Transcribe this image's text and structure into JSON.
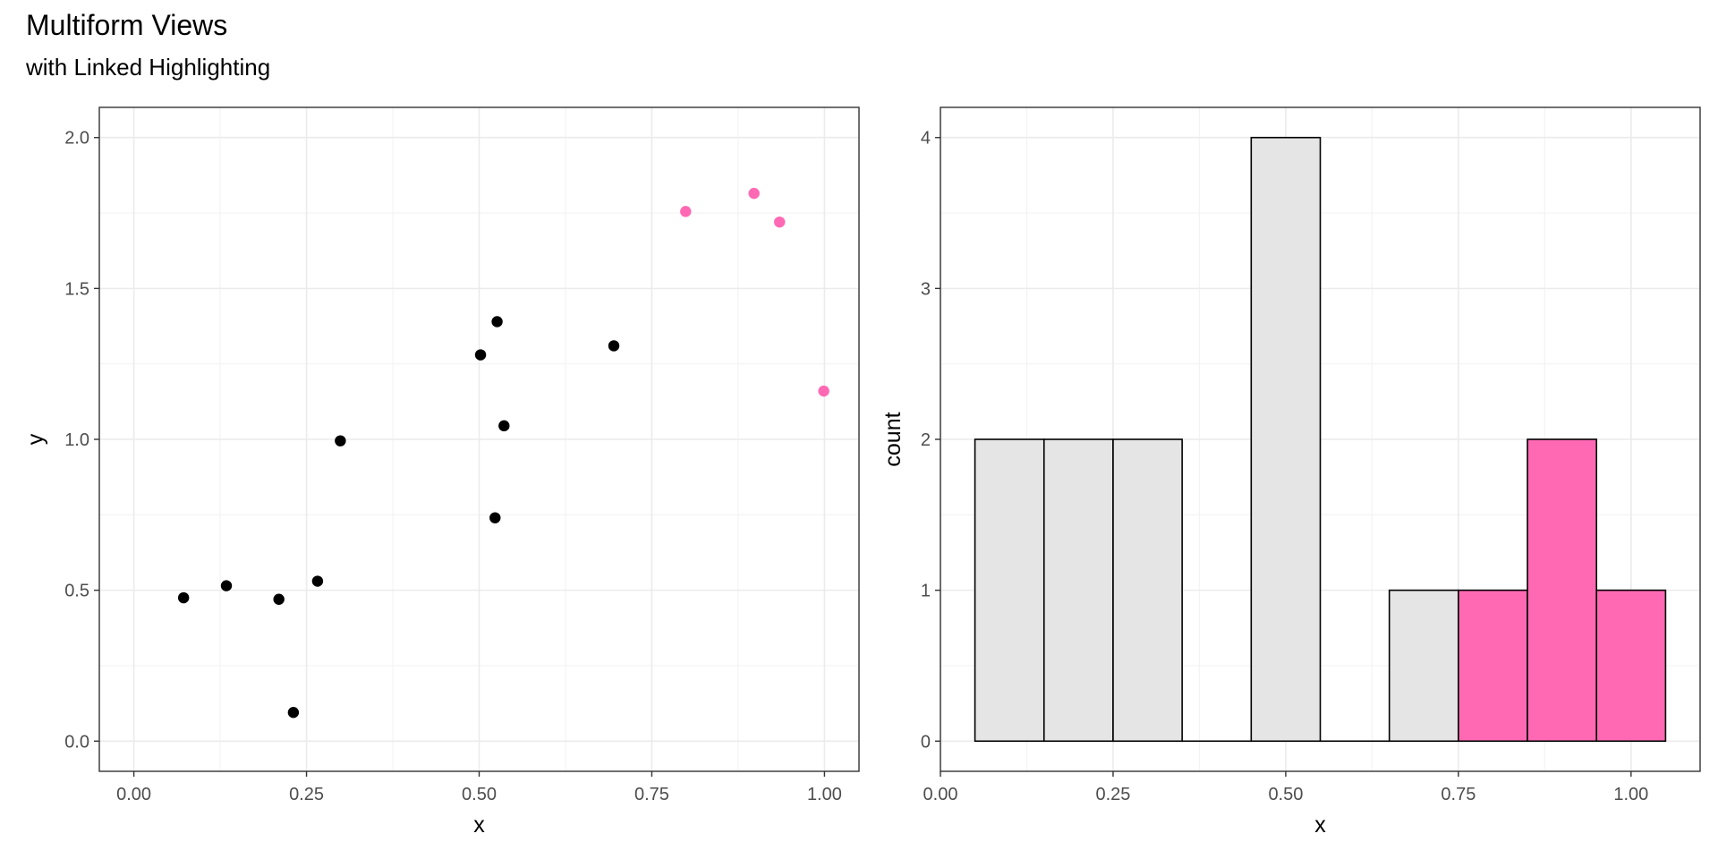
{
  "figure": {
    "title": "Multiform Views",
    "subtitle": "with Linked Highlighting"
  },
  "colors": {
    "highlight": "#FF69B4",
    "point": "#000000",
    "bar_fill": "#E5E5E5",
    "bar_stroke": "#000000",
    "grid_major": "#EBEBEB",
    "grid_minor": "#F3F3F3",
    "panel_border": "#333333",
    "tick_text": "#4D4D4D"
  },
  "chart_data": [
    {
      "type": "scatter",
      "xlabel": "x",
      "ylabel": "y",
      "xlim": [
        -0.05,
        1.05
      ],
      "ylim": [
        -0.1,
        2.1
      ],
      "x_ticks": [
        0,
        0.25,
        0.5,
        0.75,
        1.0
      ],
      "x_tick_labels": [
        "0.00",
        "0.25",
        "0.50",
        "0.75",
        "1.00"
      ],
      "y_ticks": [
        0,
        0.5,
        1.0,
        1.5,
        2.0
      ],
      "y_tick_labels": [
        "0.0",
        "0.5",
        "1.0",
        "1.5",
        "2.0"
      ],
      "grid": true,
      "points": [
        {
          "x": 0.072,
          "y": 0.475,
          "highlighted": false
        },
        {
          "x": 0.134,
          "y": 0.515,
          "highlighted": false
        },
        {
          "x": 0.21,
          "y": 0.47,
          "highlighted": false
        },
        {
          "x": 0.231,
          "y": 0.095,
          "highlighted": false
        },
        {
          "x": 0.266,
          "y": 0.53,
          "highlighted": false
        },
        {
          "x": 0.299,
          "y": 0.995,
          "highlighted": false
        },
        {
          "x": 0.502,
          "y": 1.28,
          "highlighted": false
        },
        {
          "x": 0.523,
          "y": 0.74,
          "highlighted": false
        },
        {
          "x": 0.526,
          "y": 1.39,
          "highlighted": false
        },
        {
          "x": 0.536,
          "y": 1.045,
          "highlighted": false
        },
        {
          "x": 0.695,
          "y": 1.31,
          "highlighted": false
        },
        {
          "x": 0.799,
          "y": 1.755,
          "highlighted": true
        },
        {
          "x": 0.898,
          "y": 1.815,
          "highlighted": true
        },
        {
          "x": 0.935,
          "y": 1.72,
          "highlighted": true
        },
        {
          "x": 0.999,
          "y": 1.16,
          "highlighted": true
        }
      ]
    },
    {
      "type": "bar",
      "xlabel": "x",
      "ylabel": "count",
      "xlim": [
        0.0,
        1.1
      ],
      "ylim": [
        -0.2,
        4.2
      ],
      "x_ticks": [
        0,
        0.25,
        0.5,
        0.75,
        1.0
      ],
      "x_tick_labels": [
        "0.00",
        "0.25",
        "0.50",
        "0.75",
        "1.00"
      ],
      "y_ticks": [
        0,
        1,
        2,
        3,
        4
      ],
      "y_tick_labels": [
        "0",
        "1",
        "2",
        "3",
        "4"
      ],
      "grid": true,
      "bin_width": 0.1,
      "bins": [
        {
          "x0": 0.05,
          "x1": 0.15,
          "count": 2,
          "highlighted": false
        },
        {
          "x0": 0.15,
          "x1": 0.25,
          "count": 2,
          "highlighted": false
        },
        {
          "x0": 0.25,
          "x1": 0.35,
          "count": 2,
          "highlighted": false
        },
        {
          "x0": 0.35,
          "x1": 0.45,
          "count": 0,
          "highlighted": false
        },
        {
          "x0": 0.45,
          "x1": 0.55,
          "count": 4,
          "highlighted": false
        },
        {
          "x0": 0.55,
          "x1": 0.65,
          "count": 0,
          "highlighted": false
        },
        {
          "x0": 0.65,
          "x1": 0.75,
          "count": 1,
          "highlighted": false
        },
        {
          "x0": 0.75,
          "x1": 0.85,
          "count": 1,
          "highlighted": true
        },
        {
          "x0": 0.85,
          "x1": 0.95,
          "count": 2,
          "highlighted": true
        },
        {
          "x0": 0.95,
          "x1": 1.05,
          "count": 1,
          "highlighted": true
        }
      ]
    }
  ]
}
